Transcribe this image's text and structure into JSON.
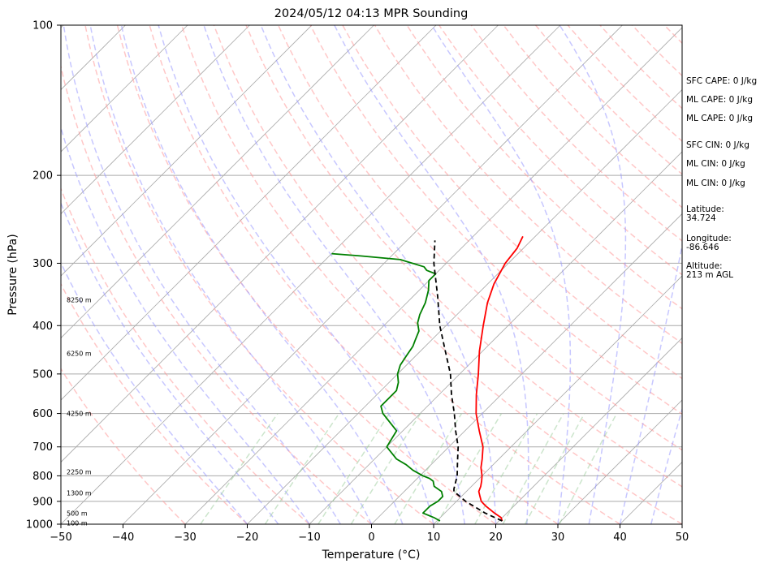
{
  "chart_data": {
    "type": "line",
    "title": "2024/05/12 04:13 MPR Sounding",
    "xlabel": "Temperature (°C)",
    "ylabel": "Pressure (hPa)",
    "xlim": [
      -50,
      50
    ],
    "ylim": [
      1000,
      100
    ],
    "yscale": "log",
    "skew": "skew-T log-p",
    "x_ticks": [
      -50,
      -40,
      -30,
      -20,
      -10,
      0,
      10,
      20,
      30,
      40,
      50
    ],
    "y_ticks": [
      100,
      200,
      300,
      400,
      500,
      600,
      700,
      800,
      900,
      1000
    ],
    "grid": "horizontal pressure lines",
    "colors": {
      "temperature": "#ff0000",
      "dewpoint": "#008000",
      "parcel": "#000000",
      "isotherm": "#aaaaaa",
      "dry_adiabat": "#ff9999",
      "moist_adiabat": "#9999ff",
      "mixing_ratio": "#99cc99"
    },
    "series": [
      {
        "pressure": [
          985,
          970,
          950,
          920,
          900,
          880,
          860,
          840,
          820,
          800,
          770,
          740,
          700,
          650,
          600,
          550,
          500,
          450,
          400,
          360,
          330,
          300,
          280,
          265
        ],
        "values": [
          20.5,
          19.8,
          18.0,
          15.5,
          14.0,
          13.0,
          12.0,
          11.5,
          10.8,
          10.0,
          8.5,
          7.3,
          5.5,
          2.3,
          -1.0,
          -4.0,
          -7.0,
          -10.5,
          -14.0,
          -17.0,
          -19.0,
          -20.5,
          -21.0,
          -22.0
        ]
      },
      {
        "pressure": [
          985,
          970,
          950,
          920,
          900,
          880,
          860,
          840,
          830,
          820,
          810,
          800,
          780,
          760,
          740,
          700,
          650,
          600,
          580,
          560,
          540,
          520,
          500,
          480,
          460,
          440,
          430,
          420,
          410,
          395,
          380,
          360,
          340,
          325,
          315,
          310,
          305,
          295,
          290,
          287
        ],
        "values": [
          10.5,
          9.0,
          6.5,
          6.5,
          7.0,
          7.0,
          6.0,
          4.0,
          3.5,
          3.0,
          2.0,
          0.5,
          -2.0,
          -4.0,
          -6.5,
          -10.0,
          -11.0,
          -16.0,
          -17.5,
          -17.5,
          -17.5,
          -18.5,
          -20.0,
          -21.0,
          -21.5,
          -22.0,
          -22.5,
          -23.0,
          -23.5,
          -25.0,
          -26.0,
          -27.0,
          -28.5,
          -30.0,
          -30.0,
          -32.0,
          -33.0,
          -38.0,
          -45.0,
          -50.0
        ]
      },
      {
        "pressure": [
          985,
          950,
          900,
          860,
          850,
          800,
          750,
          700,
          650,
          600,
          550,
          500,
          450,
          400,
          350,
          300,
          270
        ],
        "values": [
          20.5,
          16.5,
          11.5,
          8.0,
          7.6,
          6.0,
          3.8,
          1.5,
          -1.5,
          -4.5,
          -8.0,
          -11.5,
          -16.0,
          -21.0,
          -26.0,
          -32.0,
          -35.5
        ]
      }
    ],
    "height_labels": [
      {
        "text": "8250 m",
        "pressure": 355
      },
      {
        "text": "6250 m",
        "pressure": 455
      },
      {
        "text": "4250 m",
        "pressure": 600
      },
      {
        "text": "2250 m",
        "pressure": 785
      },
      {
        "text": "1300 m",
        "pressure": 866
      },
      {
        "text": "500 m",
        "pressure": 950
      },
      {
        "text": "100 m",
        "pressure": 994
      }
    ]
  },
  "side_panel": [
    [
      "SFC CAPE: 0 J/kg"
    ],
    [
      "ML CAPE: 0 J/kg"
    ],
    [
      "ML CAPE: 0 J/kg"
    ],
    [
      "SFC CIN: 0 J/kg"
    ],
    [
      "ML CIN: 0 J/kg"
    ],
    [
      "ML CIN: 0 J/kg"
    ],
    [
      "Latitude:",
      "34.724"
    ],
    [
      "Longitude:",
      "-86.646"
    ],
    [
      "Altitude:",
      "213 m AGL"
    ]
  ]
}
